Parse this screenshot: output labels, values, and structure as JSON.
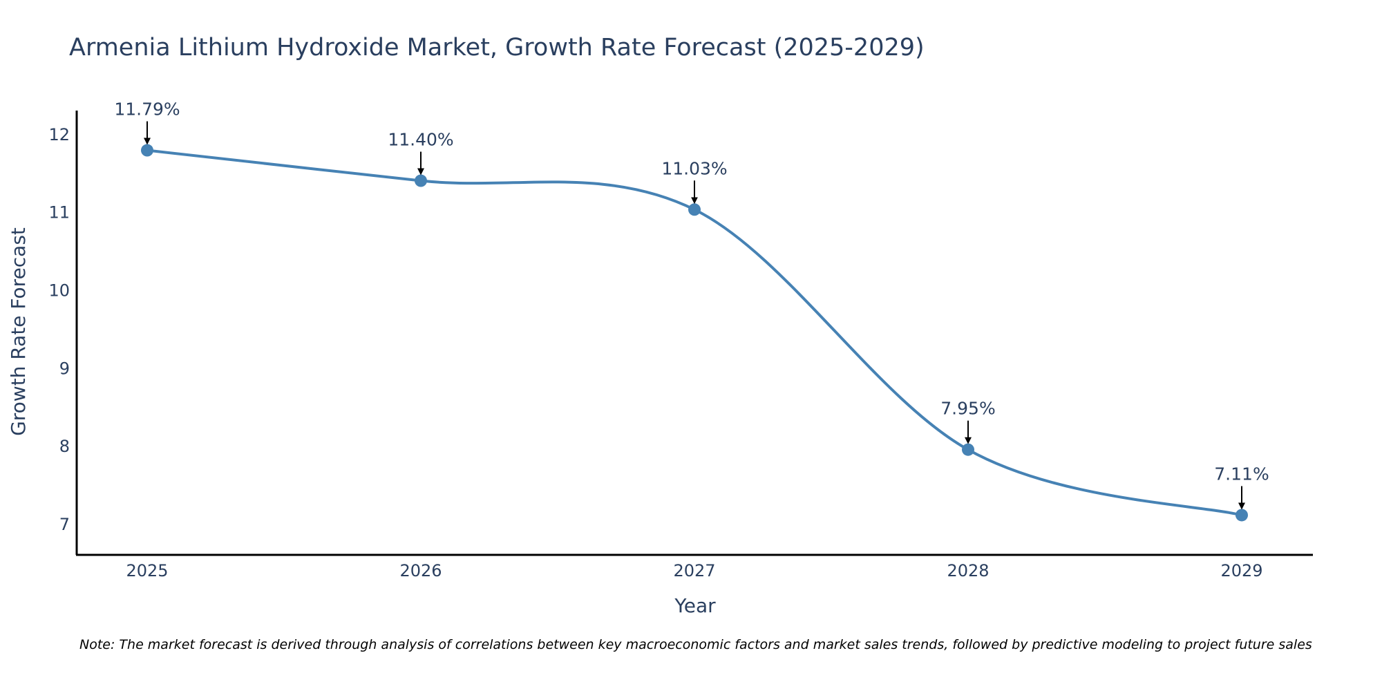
{
  "chart_data": {
    "type": "line",
    "title": "Armenia Lithium Hydroxide Market, Growth Rate Forecast (2025-2029)",
    "xlabel": "Year",
    "ylabel": "Growth Rate Forecast",
    "categories": [
      "2025",
      "2026",
      "2027",
      "2028",
      "2029"
    ],
    "values": [
      11.79,
      11.4,
      11.03,
      7.95,
      7.11
    ],
    "data_labels": [
      "11.79%",
      "11.40%",
      "11.03%",
      "7.95%",
      "7.11%"
    ],
    "ylim": [
      6.6,
      12.3
    ],
    "yticks": [
      7,
      8,
      9,
      10,
      11,
      12
    ],
    "grid": false,
    "line_shape": "spline",
    "series_color": "#4682b4",
    "arrow_color": "#000000",
    "note": "Note: The market forecast is derived through analysis of correlations between key macroeconomic factors and market sales trends, followed by predictive modeling to project future sales"
  }
}
